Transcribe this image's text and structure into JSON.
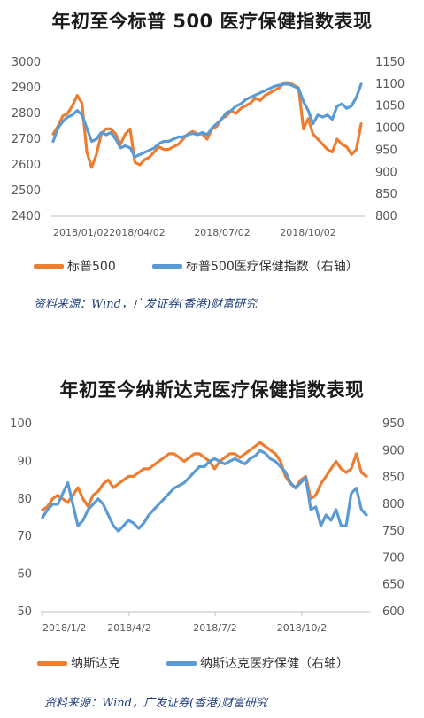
{
  "colors": {
    "orange": "#ED7D31",
    "blue": "#5B9BD5",
    "axis": "#BFBFBF",
    "tick": "#595959",
    "source": "#1f3f7a"
  },
  "chart_data": [
    {
      "type": "line",
      "title": "年初至今标普 500 医疗保健指数表现",
      "x_tick_labels": [
        "2018/01/02",
        "2018/04/02",
        "2018/07/02",
        "2018/10/02"
      ],
      "y_left": {
        "ticks": [
          2400,
          2500,
          2600,
          2700,
          2800,
          2900,
          3000
        ],
        "lim": [
          2400,
          3000
        ]
      },
      "y_right": {
        "ticks": [
          800,
          850,
          900,
          950,
          1000,
          1050,
          1100,
          1150
        ],
        "lim": [
          800,
          1150
        ]
      },
      "series": [
        {
          "name": "标普500",
          "axis": "left",
          "color": "#ED7D31",
          "values": [
            2720,
            2750,
            2790,
            2800,
            2830,
            2870,
            2840,
            2650,
            2590,
            2640,
            2720,
            2740,
            2740,
            2720,
            2680,
            2720,
            2740,
            2610,
            2600,
            2620,
            2630,
            2650,
            2670,
            2660,
            2660,
            2670,
            2680,
            2700,
            2720,
            2730,
            2720,
            2720,
            2700,
            2740,
            2750,
            2780,
            2790,
            2810,
            2800,
            2820,
            2830,
            2840,
            2860,
            2850,
            2870,
            2880,
            2890,
            2900,
            2920,
            2920,
            2910,
            2900,
            2740,
            2780,
            2720,
            2700,
            2680,
            2660,
            2650,
            2700,
            2680,
            2670,
            2640,
            2660,
            2760
          ]
        },
        {
          "name": "标普500医疗保健指数（右轴）",
          "axis": "right",
          "color": "#5B9BD5",
          "values": [
            970,
            1000,
            1015,
            1025,
            1030,
            1040,
            1030,
            1000,
            970,
            975,
            990,
            985,
            990,
            975,
            955,
            960,
            955,
            935,
            940,
            945,
            950,
            955,
            965,
            970,
            970,
            975,
            980,
            980,
            985,
            988,
            985,
            990,
            985,
            1000,
            1010,
            1020,
            1035,
            1040,
            1050,
            1055,
            1065,
            1070,
            1075,
            1080,
            1085,
            1090,
            1095,
            1098,
            1100,
            1100,
            1095,
            1090,
            1060,
            1040,
            1010,
            1030,
            1025,
            1030,
            1020,
            1050,
            1055,
            1045,
            1050,
            1070,
            1100
          ]
        }
      ],
      "legend": "bottom",
      "source": "资料来源：Wind，广发证券(香港)财富研究"
    },
    {
      "type": "line",
      "title": "年初至今纳斯达克医疗保健指数表现",
      "x_tick_labels": [
        "2018/1/2",
        "2018/4/2",
        "2018/7/2",
        "2018/10/2"
      ],
      "y_left": {
        "ticks": [
          50,
          60,
          70,
          80,
          90,
          100
        ],
        "lim": [
          50,
          100
        ]
      },
      "y_right": {
        "ticks": [
          600,
          650,
          700,
          750,
          800,
          850,
          900,
          950
        ],
        "lim": [
          600,
          950
        ]
      },
      "series": [
        {
          "name": "纳斯达克",
          "axis": "left",
          "color": "#ED7D31",
          "values": [
            77,
            78,
            80,
            81,
            80,
            79,
            81,
            83,
            80,
            78,
            81,
            82,
            84,
            85,
            83,
            84,
            85,
            86,
            86,
            87,
            88,
            88,
            89,
            90,
            91,
            92,
            92,
            91,
            90,
            91,
            92,
            92,
            91,
            90,
            88,
            90,
            91,
            92,
            92,
            91,
            92,
            93,
            94,
            95,
            94,
            93,
            92,
            90,
            86,
            84,
            83,
            85,
            86,
            80,
            81,
            84,
            86,
            88,
            90,
            88,
            87,
            88,
            92,
            87,
            86
          ]
        },
        {
          "name": "纳斯达克医疗保健（右轴）",
          "axis": "right",
          "color": "#5B9BD5",
          "values": [
            775,
            790,
            800,
            800,
            820,
            840,
            800,
            760,
            770,
            790,
            800,
            810,
            800,
            780,
            760,
            750,
            760,
            770,
            765,
            755,
            765,
            780,
            790,
            800,
            810,
            820,
            830,
            835,
            840,
            850,
            860,
            870,
            870,
            880,
            885,
            880,
            875,
            880,
            885,
            880,
            875,
            885,
            890,
            900,
            895,
            885,
            880,
            870,
            860,
            840,
            830,
            840,
            850,
            790,
            795,
            760,
            780,
            770,
            790,
            760,
            760,
            820,
            830,
            790,
            780
          ]
        }
      ],
      "legend": "bottom",
      "source": "资料来源：Wind，广发证券(香港)财富研究"
    }
  ]
}
